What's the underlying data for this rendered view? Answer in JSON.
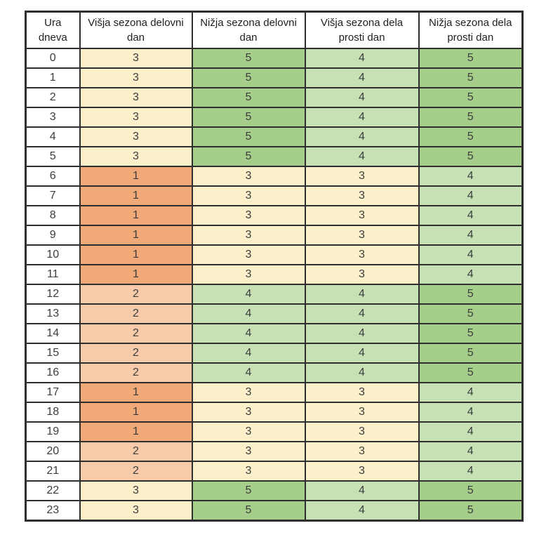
{
  "page": {
    "background": "#ffffff"
  },
  "table": {
    "headers": [
      "Ura dneva",
      "Višja sezona delovni dan",
      "Nižja sezona delovni dan",
      "Višja sezona dela prosti dan",
      "Nižja sezona dela prosti dan"
    ],
    "rows": [
      {
        "hour": "0",
        "values": [
          "3",
          "5",
          "4",
          "5"
        ]
      },
      {
        "hour": "1",
        "values": [
          "3",
          "5",
          "4",
          "5"
        ]
      },
      {
        "hour": "2",
        "values": [
          "3",
          "5",
          "4",
          "5"
        ]
      },
      {
        "hour": "3",
        "values": [
          "3",
          "5",
          "4",
          "5"
        ]
      },
      {
        "hour": "4",
        "values": [
          "3",
          "5",
          "4",
          "5"
        ]
      },
      {
        "hour": "5",
        "values": [
          "3",
          "5",
          "4",
          "5"
        ]
      },
      {
        "hour": "6",
        "values": [
          "1",
          "3",
          "3",
          "4"
        ]
      },
      {
        "hour": "7",
        "values": [
          "1",
          "3",
          "3",
          "4"
        ]
      },
      {
        "hour": "8",
        "values": [
          "1",
          "3",
          "3",
          "4"
        ]
      },
      {
        "hour": "9",
        "values": [
          "1",
          "3",
          "3",
          "4"
        ]
      },
      {
        "hour": "10",
        "values": [
          "1",
          "3",
          "3",
          "4"
        ]
      },
      {
        "hour": "11",
        "values": [
          "1",
          "3",
          "3",
          "4"
        ]
      },
      {
        "hour": "12",
        "values": [
          "2",
          "4",
          "4",
          "5"
        ]
      },
      {
        "hour": "13",
        "values": [
          "2",
          "4",
          "4",
          "5"
        ]
      },
      {
        "hour": "14",
        "values": [
          "2",
          "4",
          "4",
          "5"
        ]
      },
      {
        "hour": "15",
        "values": [
          "2",
          "4",
          "4",
          "5"
        ]
      },
      {
        "hour": "16",
        "values": [
          "2",
          "4",
          "4",
          "5"
        ]
      },
      {
        "hour": "17",
        "values": [
          "1",
          "3",
          "3",
          "4"
        ]
      },
      {
        "hour": "18",
        "values": [
          "1",
          "3",
          "3",
          "4"
        ]
      },
      {
        "hour": "19",
        "values": [
          "1",
          "3",
          "3",
          "4"
        ]
      },
      {
        "hour": "20",
        "values": [
          "2",
          "3",
          "3",
          "4"
        ]
      },
      {
        "hour": "21",
        "values": [
          "2",
          "3",
          "3",
          "4"
        ]
      },
      {
        "hour": "22",
        "values": [
          "3",
          "5",
          "4",
          "5"
        ]
      },
      {
        "hour": "23",
        "values": [
          "3",
          "5",
          "4",
          "5"
        ]
      }
    ],
    "value_colors": {
      "1": "#F1A97A",
      "2": "#F7CBA9",
      "3": "#FBF0CA",
      "4": "#C7E1B5",
      "5": "#A5CE8B"
    },
    "hour_column_bg": "#FFFFFF",
    "border_color": "#2E2E2E",
    "number_text_color": "#3D3D3D"
  }
}
